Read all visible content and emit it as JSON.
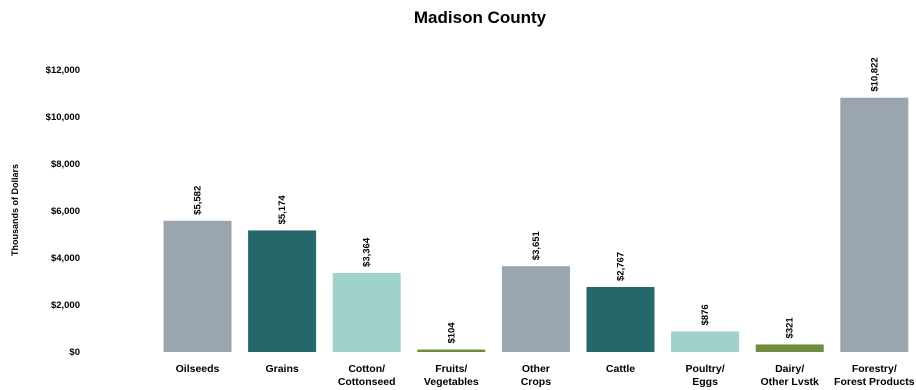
{
  "chart_data": {
    "type": "bar",
    "title": "Madison County",
    "ylabel": "Thousands of Dollars",
    "xlabel": "",
    "ylim": [
      0,
      12000
    ],
    "yticks": [
      0,
      2000,
      4000,
      6000,
      8000,
      10000,
      12000
    ],
    "ytick_labels": [
      "$0",
      "$2,000",
      "$4,000",
      "$6,000",
      "$8,000",
      "$10,000",
      "$12,000"
    ],
    "grid": false,
    "legend": "none",
    "categories": [
      [
        "Oilseeds"
      ],
      [
        "Grains"
      ],
      [
        "Cotton/",
        "Cottonseed"
      ],
      [
        "Fruits/",
        "Vegetables"
      ],
      [
        "Other",
        "Crops"
      ],
      [
        "Cattle"
      ],
      [
        "Poultry/",
        "Eggs"
      ],
      [
        "Dairy/",
        "Other Lvstk"
      ],
      [
        "Forestry/",
        "Forest Products"
      ]
    ],
    "values": [
      5582,
      5174,
      3364,
      104,
      3651,
      2767,
      876,
      321,
      10822
    ],
    "data_labels": [
      "$5,582",
      "$5,174",
      "$3,364",
      "$104",
      "$3,651",
      "$2,767",
      "$876",
      "$321",
      "$10,822"
    ],
    "bar_colors": [
      "#9aa5b0",
      "#26676b",
      "#a0d2cb",
      "#6e8c3a",
      "#9aa5b0",
      "#26676b",
      "#a0d2cb",
      "#6e8c3a",
      "#9aa5b0"
    ]
  }
}
